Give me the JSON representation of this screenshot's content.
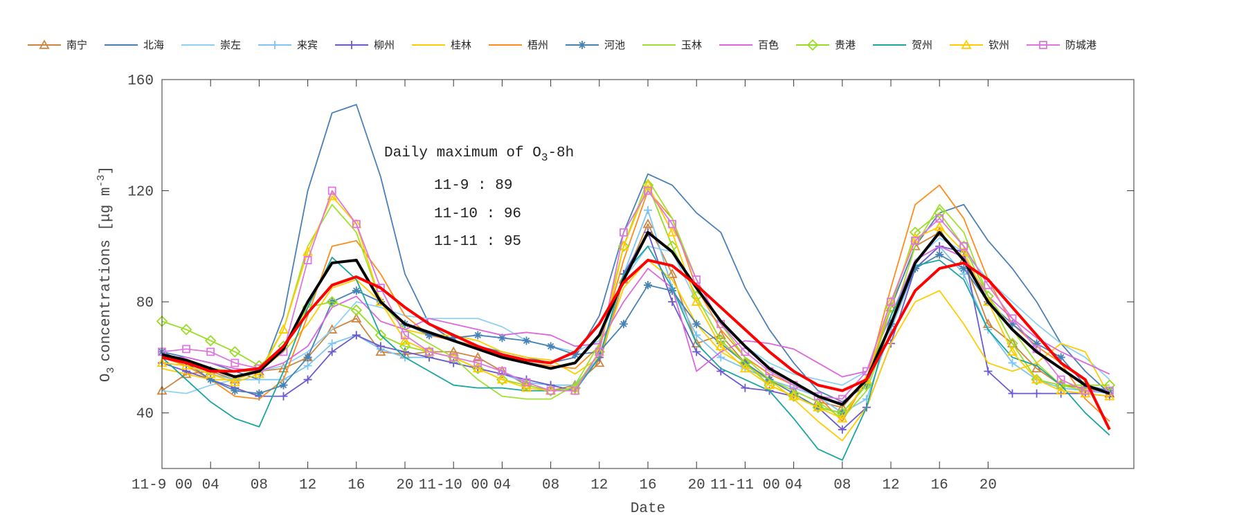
{
  "chart_data": {
    "type": "line",
    "xlabel": "Date",
    "ylabel": "concentrations [μg m",
    "ylabel_prefix": "O",
    "ylabel_sub": "3",
    "ylabel_sup": "-3",
    "ylabel_end": "]",
    "ylim": [
      20,
      160
    ],
    "xlim": [
      0,
      80
    ],
    "yticks": [
      40,
      80,
      120,
      160
    ],
    "xticks": [
      {
        "h": 0,
        "label": "11-9 00"
      },
      {
        "h": 4,
        "label": "04"
      },
      {
        "h": 8,
        "label": "08"
      },
      {
        "h": 12,
        "label": "12"
      },
      {
        "h": 16,
        "label": "16"
      },
      {
        "h": 20,
        "label": "20"
      },
      {
        "h": 24,
        "label": "11-10 00"
      },
      {
        "h": 28,
        "label": "04"
      },
      {
        "h": 32,
        "label": "08"
      },
      {
        "h": 36,
        "label": "12"
      },
      {
        "h": 40,
        "label": "16"
      },
      {
        "h": 44,
        "label": "20"
      },
      {
        "h": 48,
        "label": "11-11 00"
      },
      {
        "h": 52,
        "label": "04"
      },
      {
        "h": 56,
        "label": "08"
      },
      {
        "h": 60,
        "label": "12"
      },
      {
        "h": 64,
        "label": "16"
      },
      {
        "h": 68,
        "label": "20"
      }
    ],
    "x_hours_step": 2,
    "annotation": {
      "title": "Daily maximum of O",
      "title_sub": "3",
      "title_end": "-8h",
      "lines": [
        "11-9 : 89",
        "11-10 : 96",
        "11-11 : 95"
      ]
    },
    "legend_position": "top",
    "series": [
      {
        "name": "南宁",
        "color": "#cd853f",
        "marker": "triangle",
        "values": [
          48,
          54,
          55,
          52,
          55,
          56,
          60,
          70,
          74,
          62,
          61,
          62,
          62,
          60,
          55,
          50,
          48,
          50,
          58,
          88,
          108,
          90,
          65,
          68,
          58,
          52,
          48,
          44,
          42,
          52,
          78,
          100,
          105,
          95,
          72,
          65,
          56,
          50,
          49,
          47
        ]
      },
      {
        "name": "北海",
        "color": "#4a7fb5",
        "marker": "none",
        "values": [
          62,
          60,
          58,
          55,
          52,
          75,
          120,
          148,
          151,
          125,
          90,
          72,
          66,
          64,
          62,
          60,
          58,
          60,
          75,
          105,
          126,
          122,
          112,
          105,
          85,
          70,
          58,
          48,
          44,
          50,
          78,
          100,
          112,
          115,
          102,
          92,
          80,
          65,
          55,
          47
        ]
      },
      {
        "name": "崇左",
        "color": "#8fd0f5",
        "marker": "none",
        "values": [
          48,
          47,
          50,
          52,
          55,
          57,
          62,
          70,
          80,
          78,
          75,
          74,
          74,
          74,
          71,
          66,
          64,
          62,
          66,
          88,
          100,
          98,
          80,
          72,
          64,
          58,
          54,
          52,
          50,
          55,
          75,
          95,
          103,
          98,
          88,
          80,
          72,
          65,
          60,
          52
        ]
      },
      {
        "name": "来宾",
        "color": "#7cc4f4",
        "marker": "plus",
        "values": [
          58,
          57,
          54,
          52,
          52,
          52,
          57,
          65,
          68,
          63,
          60,
          60,
          58,
          56,
          54,
          51,
          50,
          50,
          60,
          90,
          113,
          85,
          68,
          60,
          56,
          52,
          49,
          46,
          40,
          45,
          70,
          92,
          100,
          90,
          70,
          58,
          52,
          49,
          48,
          47
        ]
      },
      {
        "name": "柳州",
        "color": "#6a5acd",
        "marker": "plus",
        "values": [
          58,
          55,
          52,
          49,
          46,
          46,
          52,
          62,
          68,
          64,
          62,
          60,
          58,
          56,
          54,
          52,
          50,
          48,
          60,
          90,
          105,
          80,
          62,
          55,
          49,
          48,
          46,
          42,
          34,
          42,
          65,
          92,
          100,
          98,
          55,
          47,
          47,
          47,
          47,
          46
        ]
      },
      {
        "name": "桂林",
        "color": "#ffcc00",
        "marker": "none",
        "values": [
          56,
          54,
          52,
          52,
          55,
          62,
          72,
          85,
          88,
          80,
          70,
          68,
          68,
          66,
          62,
          60,
          59,
          54,
          60,
          85,
          95,
          88,
          72,
          62,
          57,
          52,
          45,
          37,
          30,
          42,
          65,
          80,
          84,
          72,
          58,
          55,
          58,
          65,
          62,
          46
        ]
      },
      {
        "name": "梧州",
        "color": "#ff8c1a",
        "marker": "none",
        "values": [
          60,
          57,
          52,
          46,
          45,
          52,
          75,
          100,
          102,
          90,
          75,
          68,
          66,
          64,
          60,
          58,
          57,
          56,
          64,
          95,
          120,
          110,
          85,
          70,
          60,
          54,
          50,
          46,
          37,
          52,
          85,
          115,
          122,
          110,
          88,
          72,
          64,
          58,
          45,
          37
        ]
      },
      {
        "name": "河池",
        "color": "#4682b4",
        "marker": "star",
        "values": [
          62,
          58,
          52,
          48,
          47,
          50,
          60,
          80,
          84,
          80,
          72,
          68,
          67,
          68,
          67,
          66,
          64,
          61,
          62,
          72,
          86,
          84,
          72,
          65,
          58,
          52,
          47,
          42,
          40,
          50,
          72,
          92,
          97,
          92,
          80,
          72,
          65,
          60,
          50,
          48
        ]
      },
      {
        "name": "玉林",
        "color": "#a0e030",
        "marker": "none",
        "values": [
          60,
          58,
          56,
          55,
          55,
          70,
          100,
          115,
          105,
          80,
          70,
          65,
          60,
          52,
          46,
          45,
          45,
          50,
          65,
          100,
          124,
          110,
          88,
          72,
          60,
          52,
          48,
          44,
          38,
          48,
          72,
          100,
          115,
          105,
          82,
          70,
          58,
          50,
          48,
          48
        ]
      },
      {
        "name": "百色",
        "color": "#dd66dd",
        "marker": "none",
        "values": [
          60,
          60,
          58,
          56,
          55,
          58,
          64,
          78,
          82,
          73,
          70,
          74,
          72,
          70,
          68,
          69,
          68,
          64,
          65,
          80,
          92,
          85,
          55,
          62,
          66,
          65,
          63,
          58,
          53,
          55,
          75,
          95,
          100,
          96,
          82,
          74,
          67,
          62,
          58,
          54
        ]
      },
      {
        "name": "贵港",
        "color": "#99dd22",
        "marker": "diamond",
        "values": [
          73,
          70,
          66,
          62,
          57,
          64,
          78,
          80,
          77,
          68,
          64,
          62,
          60,
          56,
          52,
          50,
          48,
          49,
          62,
          100,
          122,
          100,
          82,
          66,
          58,
          50,
          46,
          42,
          40,
          50,
          78,
          105,
          112,
          100,
          82,
          65,
          52,
          50,
          50,
          50
        ]
      },
      {
        "name": "贺州",
        "color": "#1aa5a0",
        "marker": "none",
        "values": [
          60,
          52,
          44,
          38,
          35,
          55,
          78,
          96,
          88,
          68,
          60,
          55,
          50,
          49,
          49,
          48,
          48,
          48,
          60,
          90,
          100,
          85,
          65,
          56,
          52,
          48,
          38,
          27,
          23,
          42,
          75,
          93,
          95,
          88,
          70,
          60,
          57,
          50,
          40,
          32
        ]
      },
      {
        "name": "钦州",
        "color": "#ffcc00",
        "marker": "triangle",
        "values": [
          58,
          57,
          54,
          51,
          54,
          70,
          98,
          118,
          108,
          80,
          66,
          62,
          60,
          56,
          52,
          49,
          48,
          48,
          62,
          100,
          122,
          105,
          80,
          64,
          56,
          50,
          46,
          42,
          38,
          52,
          80,
          103,
          107,
          98,
          80,
          62,
          52,
          48,
          47,
          46
        ]
      },
      {
        "name": "防城港",
        "color": "#dd77dd",
        "marker": "square",
        "values": [
          62,
          63,
          62,
          58,
          56,
          62,
          95,
          120,
          108,
          85,
          68,
          62,
          60,
          58,
          55,
          51,
          48,
          48,
          62,
          105,
          120,
          108,
          88,
          72,
          62,
          55,
          50,
          46,
          45,
          55,
          80,
          102,
          110,
          100,
          86,
          74,
          63,
          52,
          48,
          48
        ]
      },
      {
        "color": "#000000",
        "marker": "none",
        "thick": true,
        "values": [
          61,
          59,
          56,
          53,
          55,
          63,
          80,
          94,
          95,
          80,
          72,
          69,
          66,
          63,
          60,
          58,
          56,
          58,
          68,
          88,
          105,
          98,
          85,
          73,
          64,
          56,
          51,
          46,
          43,
          52,
          72,
          94,
          105,
          95,
          80,
          70,
          62,
          56,
          50,
          47
        ]
      },
      {
        "color": "#ff0000",
        "marker": "none",
        "thick": true,
        "values": [
          60,
          58,
          55,
          55,
          56,
          64,
          76,
          86,
          89,
          85,
          78,
          72,
          68,
          64,
          61,
          59,
          58,
          62,
          72,
          87,
          95,
          93,
          86,
          78,
          70,
          62,
          55,
          50,
          48,
          52,
          68,
          84,
          92,
          94,
          88,
          78,
          68,
          58,
          52,
          34
        ]
      }
    ]
  }
}
